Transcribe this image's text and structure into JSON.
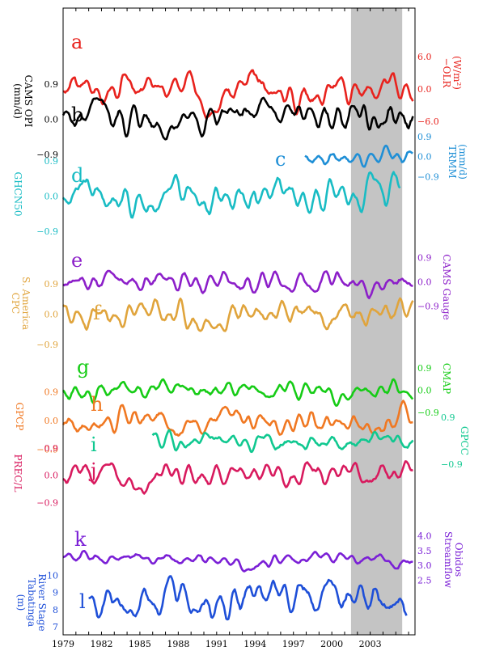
{
  "chart_data": {
    "type": "line",
    "x_start": 1979,
    "x_end": 2006.5,
    "x_tick_labels": [
      "1979",
      "1982",
      "1985",
      "1988",
      "1991",
      "1994",
      "1997",
      "2000",
      "2003"
    ],
    "shaded_range": [
      2001.5,
      2005.5
    ],
    "series": [
      {
        "id": "a",
        "letter": "a",
        "color": "#e8221d",
        "label": "−OLR\n(W/m²)",
        "label_side": "right",
        "ticks": [
          {
            "v": 6,
            "t": "6.0"
          },
          {
            "v": 0,
            "t": "0.0"
          },
          {
            "v": -6,
            "t": "−6.0"
          }
        ],
        "tick_side": "right",
        "range": [
          -9,
          12
        ],
        "start": 1979,
        "end": 2006.3,
        "base": 0,
        "amp": 3.5,
        "seed": 3
      },
      {
        "id": "b",
        "letter": "b",
        "color": "#000000",
        "label": "(mm/d)\nCAMS OPI",
        "label_side": "left",
        "ticks": [
          {
            "v": 0.9,
            "t": "0.9"
          },
          {
            "v": 0,
            "t": "0.0"
          },
          {
            "v": -0.9,
            "t": "−0.9"
          }
        ],
        "tick_side": "left",
        "range": [
          -1.4,
          1.6
        ],
        "start": 1979,
        "end": 2006.3,
        "base": 0,
        "amp": 0.55,
        "seed": 5
      },
      {
        "id": "c",
        "letter": "c",
        "color": "#1f8fd6",
        "label": "TRMM\n(mm/d)",
        "label_side": "right",
        "ticks": [
          {
            "v": 0.9,
            "t": "0.9"
          },
          {
            "v": 0,
            "t": "0.0"
          },
          {
            "v": -0.9,
            "t": "−0.9"
          }
        ],
        "tick_side": "right",
        "range": [
          -1.4,
          1.4
        ],
        "start": 1997.9,
        "end": 2006.3,
        "base": 0,
        "amp": 0.5,
        "seed": 7
      },
      {
        "id": "d",
        "letter": "d",
        "color": "#19bcc4",
        "label": "GHCN50",
        "label_side": "left",
        "ticks": [
          {
            "v": 0.9,
            "t": "0.9"
          },
          {
            "v": 0,
            "t": "0.0"
          },
          {
            "v": -0.9,
            "t": "−0.9"
          }
        ],
        "tick_side": "left",
        "range": [
          -1.6,
          1.5
        ],
        "start": 1979,
        "end": 2005.3,
        "base": 0,
        "amp": 0.55,
        "seed": 9
      },
      {
        "id": "e",
        "letter": "e",
        "color": "#8c1fc9",
        "label": "CAMS Gauge",
        "label_side": "right",
        "ticks": [
          {
            "v": 0.9,
            "t": "0.9"
          },
          {
            "v": 0,
            "t": "0.0"
          },
          {
            "v": -0.9,
            "t": "−0.9"
          }
        ],
        "tick_side": "right",
        "range": [
          -1.4,
          1.6
        ],
        "start": 1979,
        "end": 2006.3,
        "base": 0,
        "amp": 0.5,
        "seed": 11
      },
      {
        "id": "f",
        "letter": "f",
        "color": "#e0a43c",
        "label": "CPC\nS. America",
        "label_side": "left",
        "ticks": [
          {
            "v": 0.9,
            "t": "0.9"
          },
          {
            "v": 0,
            "t": "0.0"
          },
          {
            "v": -0.9,
            "t": "−0.9"
          }
        ],
        "tick_side": "left",
        "range": [
          -1.6,
          1.4
        ],
        "start": 1979,
        "end": 2006.3,
        "base": 0,
        "amp": 0.5,
        "seed": 13
      },
      {
        "id": "g",
        "letter": "g",
        "color": "#16cc16",
        "label": "CMAP",
        "label_side": "right",
        "ticks": [
          {
            "v": 0.9,
            "t": "0.9"
          },
          {
            "v": 0,
            "t": "0.0"
          },
          {
            "v": -0.9,
            "t": "−0.9"
          }
        ],
        "tick_side": "right",
        "range": [
          -1.4,
          1.4
        ],
        "start": 1979,
        "end": 2006.3,
        "base": 0,
        "amp": 0.45,
        "seed": 15
      },
      {
        "id": "h",
        "letter": "h",
        "color": "#f07822",
        "label": "GPCP",
        "label_side": "left",
        "ticks": [
          {
            "v": 0.9,
            "t": "0.9"
          },
          {
            "v": 0,
            "t": "0.0"
          },
          {
            "v": -0.9,
            "t": "−0.9"
          }
        ],
        "tick_side": "left",
        "range": [
          -1.4,
          1.4
        ],
        "start": 1979,
        "end": 2006.3,
        "base": 0,
        "amp": 0.5,
        "seed": 17
      },
      {
        "id": "i",
        "letter": "i",
        "color": "#10c890",
        "label": "GPCC",
        "label_side": "right",
        "ticks": [
          {
            "v": 0.9,
            "t": "0.9"
          },
          {
            "v": -0.9,
            "t": "−0.9"
          }
        ],
        "tick_side": "right",
        "range": [
          -1.4,
          1.4
        ],
        "start": 1986,
        "end": 2006.3,
        "base": 0,
        "amp": 0.45,
        "seed": 19
      },
      {
        "id": "j",
        "letter": "j",
        "color": "#d81a5e",
        "label": "PREC/L",
        "label_side": "left",
        "ticks": [
          {
            "v": 0.9,
            "t": "0.9"
          },
          {
            "v": 0,
            "t": "0.0"
          },
          {
            "v": -0.9,
            "t": "−0.9"
          }
        ],
        "tick_side": "left",
        "range": [
          -1.4,
          1.4
        ],
        "start": 1979,
        "end": 2006.3,
        "base": 0,
        "amp": 0.5,
        "seed": 21
      },
      {
        "id": "k",
        "letter": "k",
        "color": "#7a1fd6",
        "label": "Streamflow\nObidos",
        "label_side": "right",
        "ticks": [
          {
            "v": 4.0,
            "t": "4.0"
          },
          {
            "v": 3.5,
            "t": "3.5"
          },
          {
            "v": 3.0,
            "t": "3.0"
          },
          {
            "v": 2.5,
            "t": "2.5"
          }
        ],
        "tick_side": "right",
        "range": [
          2.3,
          4.2
        ],
        "start": 1979,
        "end": 2006.3,
        "base": 3.2,
        "amp": 0.3,
        "seed": 23
      },
      {
        "id": "l",
        "letter": "l",
        "color": "#1e4fd8",
        "label": "(m)\nTabatinga\nRiver Stage",
        "label_side": "left",
        "ticks": [
          {
            "v": 10,
            "t": "10"
          },
          {
            "v": 9,
            "t": "9"
          },
          {
            "v": 8,
            "t": "8"
          },
          {
            "v": 7,
            "t": "7"
          }
        ],
        "tick_side": "left",
        "range": [
          6.3,
          11
        ],
        "start": 1981,
        "end": 2005.8,
        "base": 8.6,
        "amp": 1.4,
        "seed": 25
      }
    ]
  }
}
